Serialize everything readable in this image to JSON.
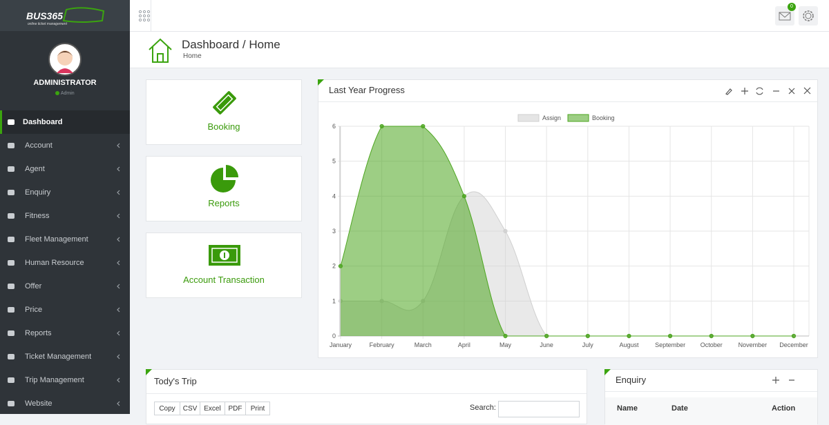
{
  "sidebar": {
    "logo": "BUS365",
    "tagline": "online ticket management",
    "user": {
      "name": "ADMINISTRATOR",
      "role": "Admin"
    },
    "menu": [
      "Dashboard",
      "Account",
      "Agent",
      "Enquiry",
      "Fitness",
      "Fleet Management",
      "Human Resource",
      "Offer",
      "Price",
      "Reports",
      "Ticket Management",
      "Trip Management",
      "Website"
    ]
  },
  "header": {
    "notifications": 0
  },
  "page_header": {
    "title": "Dashboard / Home",
    "breadcrumb": "Home"
  },
  "tiles": [
    "Booking",
    "Reports",
    "Account Transaction"
  ],
  "chart_data": {
    "type": "area",
    "title": "Last Year Progress",
    "categories": [
      "January",
      "February",
      "March",
      "April",
      "May",
      "June",
      "July",
      "August",
      "September",
      "October",
      "November",
      "December"
    ],
    "series": [
      {
        "name": "Assign",
        "color": "#cfcfcf",
        "values": [
          1,
          1,
          1,
          4,
          3,
          0,
          0,
          0,
          0,
          0,
          0,
          0
        ]
      },
      {
        "name": "Booking",
        "color": "#4ca51f",
        "values": [
          2,
          6,
          6,
          4,
          0,
          0,
          0,
          0,
          0,
          0,
          0,
          0
        ]
      }
    ],
    "ylim": [
      0,
      6
    ],
    "yticks": [
      0,
      1,
      2,
      3,
      4,
      5,
      6
    ],
    "grid": true,
    "legend": "top"
  },
  "trip_panel": {
    "title": "Tody's Trip",
    "buttons": [
      "Copy",
      "CSV",
      "Excel",
      "PDF",
      "Print"
    ],
    "search_label": "Search:"
  },
  "enquiry_panel": {
    "title": "Enquiry",
    "columns": [
      "Name",
      "Date",
      "Action"
    ]
  }
}
